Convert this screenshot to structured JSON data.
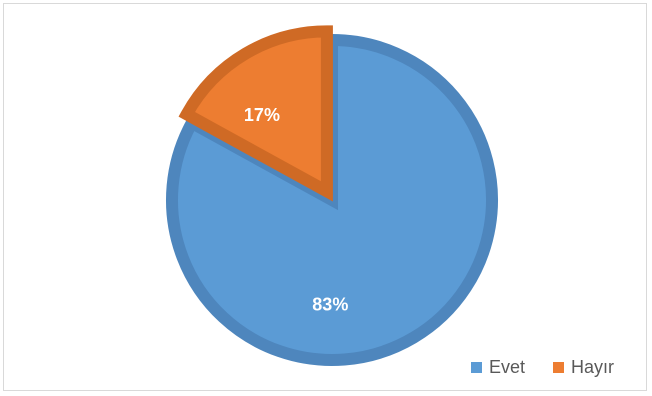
{
  "chart_data": {
    "type": "pie",
    "title": "",
    "categories": [
      "Evet",
      "Hayır"
    ],
    "values": [
      83,
      17
    ],
    "labels": [
      "83%",
      "17%"
    ],
    "colors": [
      "#5B9BD5",
      "#ED7D31"
    ],
    "border_colors": [
      "#4E86BD",
      "#CF6A25"
    ],
    "legend": "bottom-right",
    "legend_position": "bottom-right"
  }
}
